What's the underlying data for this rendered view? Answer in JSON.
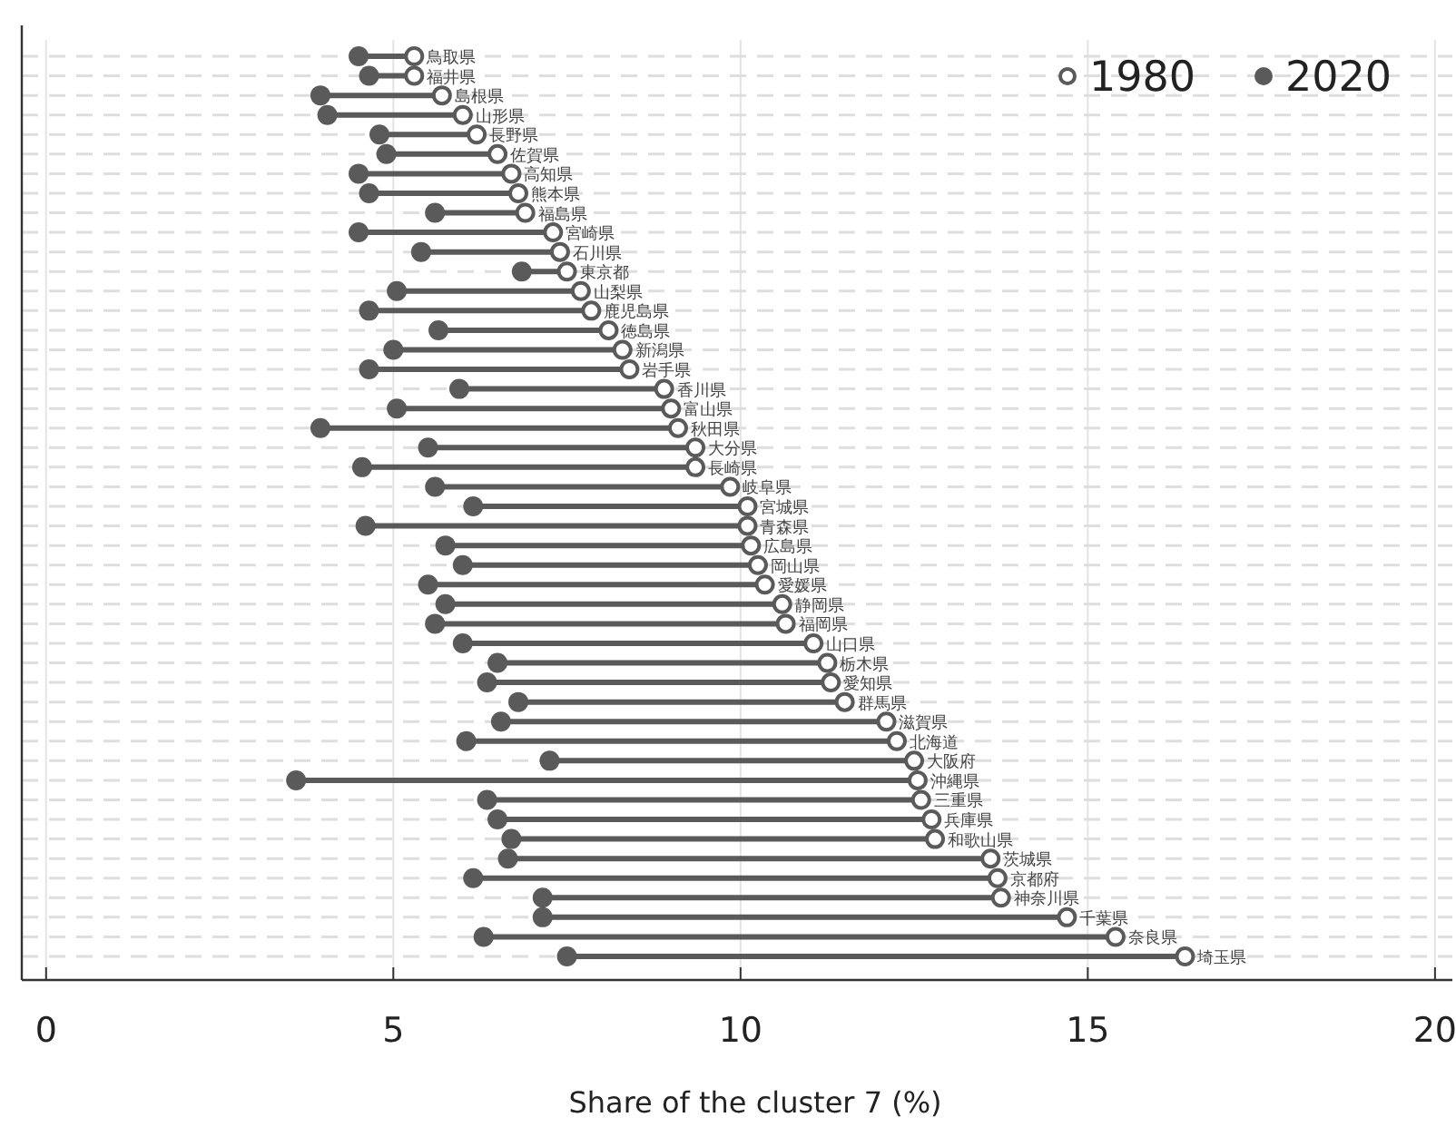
{
  "chart_data": {
    "type": "scatter",
    "orientation": "horizontal",
    "xlabel": "Share of the cluster 7 (%)",
    "xlim": [
      -0.35,
      20.25
    ],
    "xticks": [
      0,
      5,
      10,
      15,
      20
    ],
    "grid": true,
    "legend": "top right",
    "marker": "circle",
    "categories": [
      "鳥取県",
      "福井県",
      "島根県",
      "山形県",
      "長野県",
      "佐賀県",
      "高知県",
      "熊本県",
      "福島県",
      "宮崎県",
      "石川県",
      "東京都",
      "山梨県",
      "鹿児島県",
      "徳島県",
      "新潟県",
      "岩手県",
      "香川県",
      "富山県",
      "秋田県",
      "大分県",
      "長崎県",
      "岐阜県",
      "宮城県",
      "青森県",
      "広島県",
      "岡山県",
      "愛媛県",
      "静岡県",
      "福岡県",
      "山口県",
      "栃木県",
      "愛知県",
      "群馬県",
      "滋賀県",
      "北海道",
      "大阪府",
      "沖縄県",
      "三重県",
      "兵庫県",
      "和歌山県",
      "茨城県",
      "京都府",
      "神奈川県",
      "千葉県",
      "奈良県",
      "埼玉県"
    ],
    "series": [
      {
        "name": "1980",
        "color": "#5a5a5a",
        "values": [
          5.3,
          5.3,
          5.7,
          6.0,
          6.2,
          6.5,
          6.7,
          6.8,
          6.9,
          7.3,
          7.4,
          7.5,
          7.7,
          7.85,
          8.1,
          8.3,
          8.4,
          8.9,
          9.0,
          9.1,
          9.35,
          9.35,
          9.85,
          10.1,
          10.1,
          10.15,
          10.25,
          10.35,
          10.6,
          10.65,
          11.05,
          11.25,
          11.3,
          11.5,
          12.1,
          12.25,
          12.5,
          12.55,
          12.6,
          12.75,
          12.8,
          13.6,
          13.7,
          13.75,
          14.7,
          15.4,
          16.4
        ]
      },
      {
        "name": "2020",
        "color": "#5a5a5a",
        "values": [
          4.5,
          4.65,
          3.95,
          4.05,
          4.8,
          4.9,
          4.5,
          4.65,
          5.6,
          4.5,
          5.4,
          6.85,
          5.05,
          4.65,
          5.65,
          5.0,
          4.65,
          5.95,
          5.05,
          3.95,
          5.5,
          4.55,
          5.6,
          6.15,
          4.6,
          5.75,
          6.0,
          5.5,
          5.75,
          5.6,
          6.0,
          6.5,
          6.35,
          6.8,
          6.55,
          6.05,
          7.25,
          3.6,
          6.35,
          6.5,
          6.7,
          6.65,
          6.15,
          7.15,
          7.15,
          6.3,
          7.5
        ]
      }
    ]
  }
}
